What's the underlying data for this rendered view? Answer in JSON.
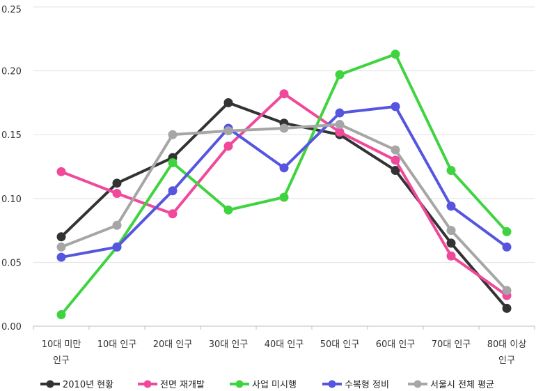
{
  "chart_data": {
    "type": "line",
    "title": "",
    "xlabel": "",
    "ylabel": "",
    "ylim": [
      0,
      0.25
    ],
    "yticks": [
      "0.00",
      "0.05",
      "0.10",
      "0.15",
      "0.20",
      "0.25"
    ],
    "grid": "horizontal",
    "legend_position": "bottom",
    "categories": [
      [
        "10대 미만",
        "인구"
      ],
      [
        "10대 인구"
      ],
      [
        "20대 인구"
      ],
      [
        "30대 인구"
      ],
      [
        "40대 인구"
      ],
      [
        "50대 인구"
      ],
      [
        "60대 인구"
      ],
      [
        "70대 인구"
      ],
      [
        "80대 이상",
        "인구"
      ]
    ],
    "series": [
      {
        "name": "2010년 현황",
        "color": "#333333",
        "values": [
          0.07,
          0.112,
          0.132,
          0.175,
          0.159,
          0.15,
          0.122,
          0.065,
          0.014
        ]
      },
      {
        "name": "전면 재개발",
        "color": "#f0489a",
        "values": [
          0.121,
          0.104,
          0.088,
          0.141,
          0.182,
          0.152,
          0.13,
          0.055,
          0.024
        ]
      },
      {
        "name": "사업 미시행",
        "color": "#3fd43f",
        "values": [
          0.009,
          0.062,
          0.128,
          0.091,
          0.101,
          0.197,
          0.213,
          0.122,
          0.074
        ]
      },
      {
        "name": "수복형 정비",
        "color": "#5555e0",
        "values": [
          0.054,
          0.062,
          0.106,
          0.155,
          0.124,
          0.167,
          0.172,
          0.094,
          0.062
        ]
      },
      {
        "name": "서울시 전체 평균",
        "color": "#a6a6a6",
        "values": [
          0.062,
          0.079,
          0.15,
          0.153,
          0.155,
          0.158,
          0.138,
          0.075,
          0.028
        ]
      }
    ]
  }
}
